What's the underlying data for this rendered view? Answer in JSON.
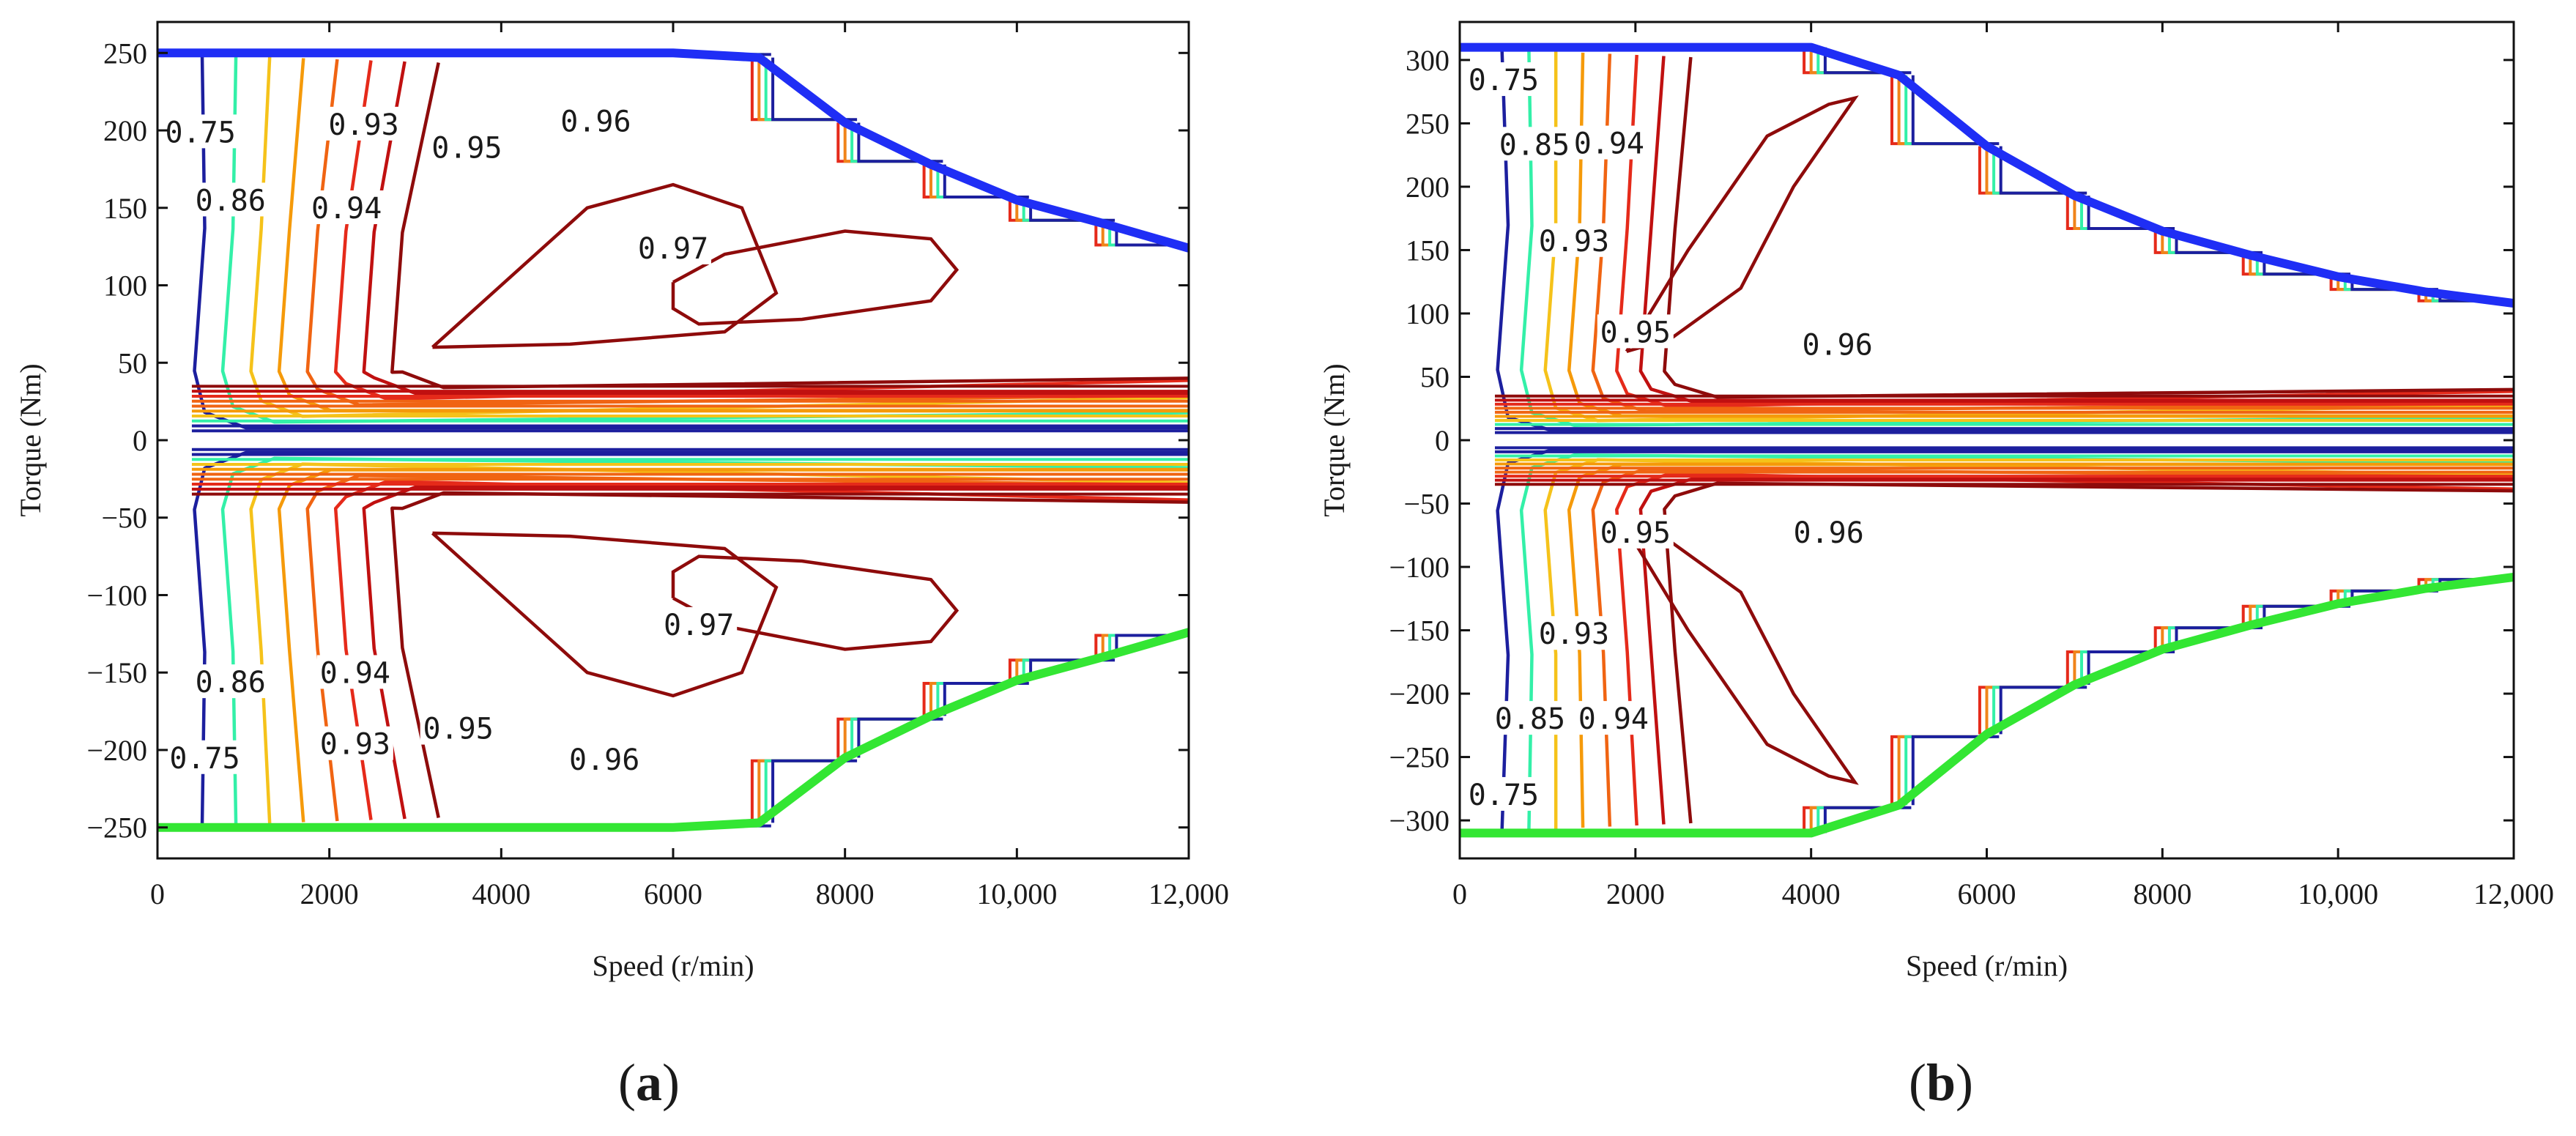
{
  "chart_data": [
    {
      "panel_label": "a",
      "type": "contour",
      "xlabel": "Speed (r/min)",
      "ylabel": "Torque (Nm)",
      "xlim": [
        0,
        12000
      ],
      "ylim": [
        -270,
        270
      ],
      "xticks": [
        {
          "v": 0,
          "t": "0"
        },
        {
          "v": 2000,
          "t": "2000"
        },
        {
          "v": 4000,
          "t": "4000"
        },
        {
          "v": 6000,
          "t": "6000"
        },
        {
          "v": 8000,
          "t": "8000"
        },
        {
          "v": 10000,
          "t": "10,000"
        },
        {
          "v": 12000,
          "t": "12,000"
        }
      ],
      "yticks": [
        {
          "v": 250,
          "t": "250"
        },
        {
          "v": 200,
          "t": "200"
        },
        {
          "v": 150,
          "t": "150"
        },
        {
          "v": 100,
          "t": "100"
        },
        {
          "v": 50,
          "t": "50"
        },
        {
          "v": 0,
          "t": "0"
        },
        {
          "v": -50,
          "t": "−50"
        },
        {
          "v": -100,
          "t": "−100"
        },
        {
          "v": -150,
          "t": "−150"
        },
        {
          "v": -200,
          "t": "−200"
        },
        {
          "v": -250,
          "t": "−250"
        }
      ],
      "envelope": {
        "motor_color": "#1f2ef5",
        "generator_color": "#33e633",
        "points": [
          [
            0,
            250
          ],
          [
            6000,
            250
          ],
          [
            7000,
            247
          ],
          [
            8000,
            205
          ],
          [
            9000,
            178
          ],
          [
            10000,
            155
          ],
          [
            11000,
            140
          ],
          [
            12000,
            124
          ]
        ]
      },
      "contour_levels": [
        "0.75",
        "0.86",
        "0.93",
        "0.94",
        "0.95",
        "0.96",
        "0.97"
      ],
      "contour_labels": [
        {
          "text": "0.75",
          "x": 500,
          "y": 197
        },
        {
          "text": "0.86",
          "x": 850,
          "y": 153
        },
        {
          "text": "0.93",
          "x": 2400,
          "y": 202
        },
        {
          "text": "0.94",
          "x": 2200,
          "y": 148
        },
        {
          "text": "0.95",
          "x": 3600,
          "y": 187
        },
        {
          "text": "0.96",
          "x": 5100,
          "y": 204
        },
        {
          "text": "0.97",
          "x": 6000,
          "y": 122
        },
        {
          "text": "0.97",
          "x": 6300,
          "y": -121
        },
        {
          "text": "0.86",
          "x": 850,
          "y": -158
        },
        {
          "text": "0.94",
          "x": 2300,
          "y": -152
        },
        {
          "text": "0.95",
          "x": 3500,
          "y": -188
        },
        {
          "text": "0.93",
          "x": 2300,
          "y": -198
        },
        {
          "text": "0.75",
          "x": 550,
          "y": -207
        },
        {
          "text": "0.96",
          "x": 5200,
          "y": -208
        }
      ]
    },
    {
      "panel_label": "b",
      "type": "contour",
      "xlabel": "Speed (r/min)",
      "ylabel": "Torque (Nm)",
      "xlim": [
        0,
        12000
      ],
      "ylim": [
        -330,
        330
      ],
      "xticks": [
        {
          "v": 0,
          "t": "0"
        },
        {
          "v": 2000,
          "t": "2000"
        },
        {
          "v": 4000,
          "t": "4000"
        },
        {
          "v": 6000,
          "t": "6000"
        },
        {
          "v": 8000,
          "t": "8000"
        },
        {
          "v": 10000,
          "t": "10,000"
        },
        {
          "v": 12000,
          "t": "12,000"
        }
      ],
      "yticks": [
        {
          "v": 300,
          "t": "300"
        },
        {
          "v": 250,
          "t": "250"
        },
        {
          "v": 200,
          "t": "200"
        },
        {
          "v": 150,
          "t": "150"
        },
        {
          "v": 100,
          "t": "100"
        },
        {
          "v": 50,
          "t": "50"
        },
        {
          "v": 0,
          "t": "0"
        },
        {
          "v": -50,
          "t": "−50"
        },
        {
          "v": -100,
          "t": "−100"
        },
        {
          "v": -150,
          "t": "−150"
        },
        {
          "v": -200,
          "t": "−200"
        },
        {
          "v": -250,
          "t": "−250"
        },
        {
          "v": -300,
          "t": "−300"
        }
      ],
      "envelope": {
        "motor_color": "#1f2ef5",
        "generator_color": "#33e633",
        "points": [
          [
            0,
            310
          ],
          [
            4000,
            310
          ],
          [
            5000,
            288
          ],
          [
            6000,
            232
          ],
          [
            7000,
            193
          ],
          [
            8000,
            165
          ],
          [
            9000,
            146
          ],
          [
            10000,
            129
          ],
          [
            11000,
            117
          ],
          [
            12000,
            108
          ]
        ]
      },
      "contour_levels": [
        "0.75",
        "0.85",
        "0.93",
        "0.94",
        "0.95",
        "0.96"
      ],
      "contour_labels": [
        {
          "text": "0.75",
          "x": 500,
          "y": 282
        },
        {
          "text": "0.85",
          "x": 850,
          "y": 231
        },
        {
          "text": "0.94",
          "x": 1700,
          "y": 232
        },
        {
          "text": "0.93",
          "x": 1300,
          "y": 155
        },
        {
          "text": "0.95",
          "x": 2000,
          "y": 83
        },
        {
          "text": "0.96",
          "x": 4300,
          "y": 73
        },
        {
          "text": "0.95",
          "x": 2000,
          "y": -75
        },
        {
          "text": "0.96",
          "x": 4200,
          "y": -75
        },
        {
          "text": "0.93",
          "x": 1300,
          "y": -155
        },
        {
          "text": "0.85",
          "x": 800,
          "y": -222
        },
        {
          "text": "0.94",
          "x": 1750,
          "y": -222
        },
        {
          "text": "0.75",
          "x": 500,
          "y": -282
        }
      ]
    }
  ]
}
